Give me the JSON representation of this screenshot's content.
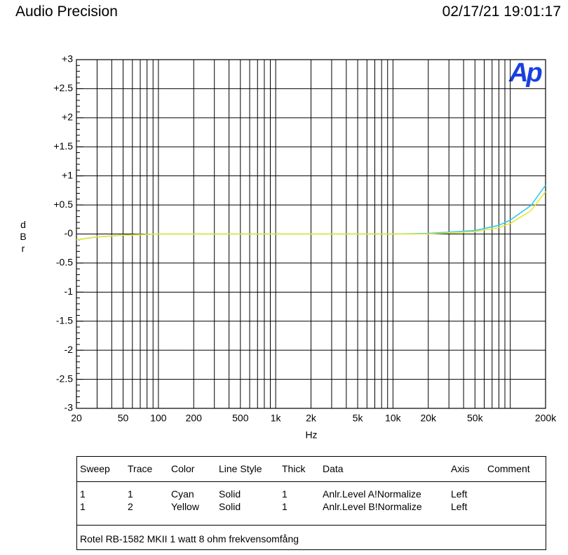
{
  "header": {
    "left": "Audio Precision",
    "right": "02/17/21 19:01:17"
  },
  "chart_data": {
    "type": "line",
    "logo": "Ap",
    "xlabel": "Hz",
    "ylabel": "dBr",
    "xscale": "log",
    "grid": true,
    "xlim": [
      20,
      200000
    ],
    "ylim": [
      -3,
      3
    ],
    "xticks": [
      20,
      50,
      100,
      200,
      500,
      {
        "value": 1000,
        "label": "1k"
      },
      {
        "value": 2000,
        "label": "2k"
      },
      {
        "value": 5000,
        "label": "5k"
      },
      {
        "value": 10000,
        "label": "10k"
      },
      {
        "value": 20000,
        "label": "20k"
      },
      {
        "value": 50000,
        "label": "50k"
      },
      {
        "value": 200000,
        "label": "200k"
      }
    ],
    "xgrid": [
      20,
      30,
      40,
      50,
      60,
      70,
      80,
      90,
      100,
      200,
      300,
      400,
      500,
      600,
      700,
      800,
      900,
      1000,
      2000,
      3000,
      4000,
      5000,
      6000,
      7000,
      8000,
      9000,
      10000,
      20000,
      30000,
      40000,
      50000,
      60000,
      70000,
      80000,
      90000,
      100000,
      200000
    ],
    "yticks": [
      {
        "value": 3,
        "label": "+3"
      },
      {
        "value": 2.5,
        "label": "+2.5"
      },
      {
        "value": 2,
        "label": "+2"
      },
      {
        "value": 1.5,
        "label": "+1.5"
      },
      {
        "value": 1,
        "label": "+1"
      },
      {
        "value": 0.5,
        "label": "+0.5"
      },
      {
        "value": 0,
        "label": "-0"
      },
      -0.5,
      -1,
      -1.5,
      -2,
      -2.5,
      -3
    ],
    "x": [
      20,
      30,
      50,
      100,
      200,
      500,
      1000,
      2000,
      5000,
      10000,
      20000,
      50000,
      80000,
      100000,
      150000,
      200000
    ],
    "series": [
      {
        "name": "Cyan",
        "color": "#33ccee",
        "values": [
          -0.1,
          -0.05,
          -0.02,
          0,
          0,
          0,
          0,
          0,
          0,
          0,
          0.01,
          0.06,
          0.15,
          0.24,
          0.49,
          0.84
        ]
      },
      {
        "name": "Yellow",
        "color": "#e8e830",
        "values": [
          -0.1,
          -0.05,
          -0.02,
          0,
          0,
          0,
          0,
          0,
          0,
          0,
          0,
          0.04,
          0.11,
          0.18,
          0.4,
          0.73
        ]
      }
    ]
  },
  "table": {
    "headers": [
      "Sweep",
      "Trace",
      "Color",
      "Line Style",
      "Thick",
      "Data",
      "Axis",
      "Comment"
    ],
    "rows": [
      [
        "1",
        "1",
        "Cyan",
        "Solid",
        "1",
        "Anlr.Level A!Normalize",
        "Left"
      ],
      [
        "1",
        "2",
        "Yellow",
        "Solid",
        "1",
        "Anlr.Level B!Normalize",
        "Left"
      ]
    ],
    "footer": "Rotel RB-1582 MKII 1 watt 8 ohm frekvensomfång"
  }
}
